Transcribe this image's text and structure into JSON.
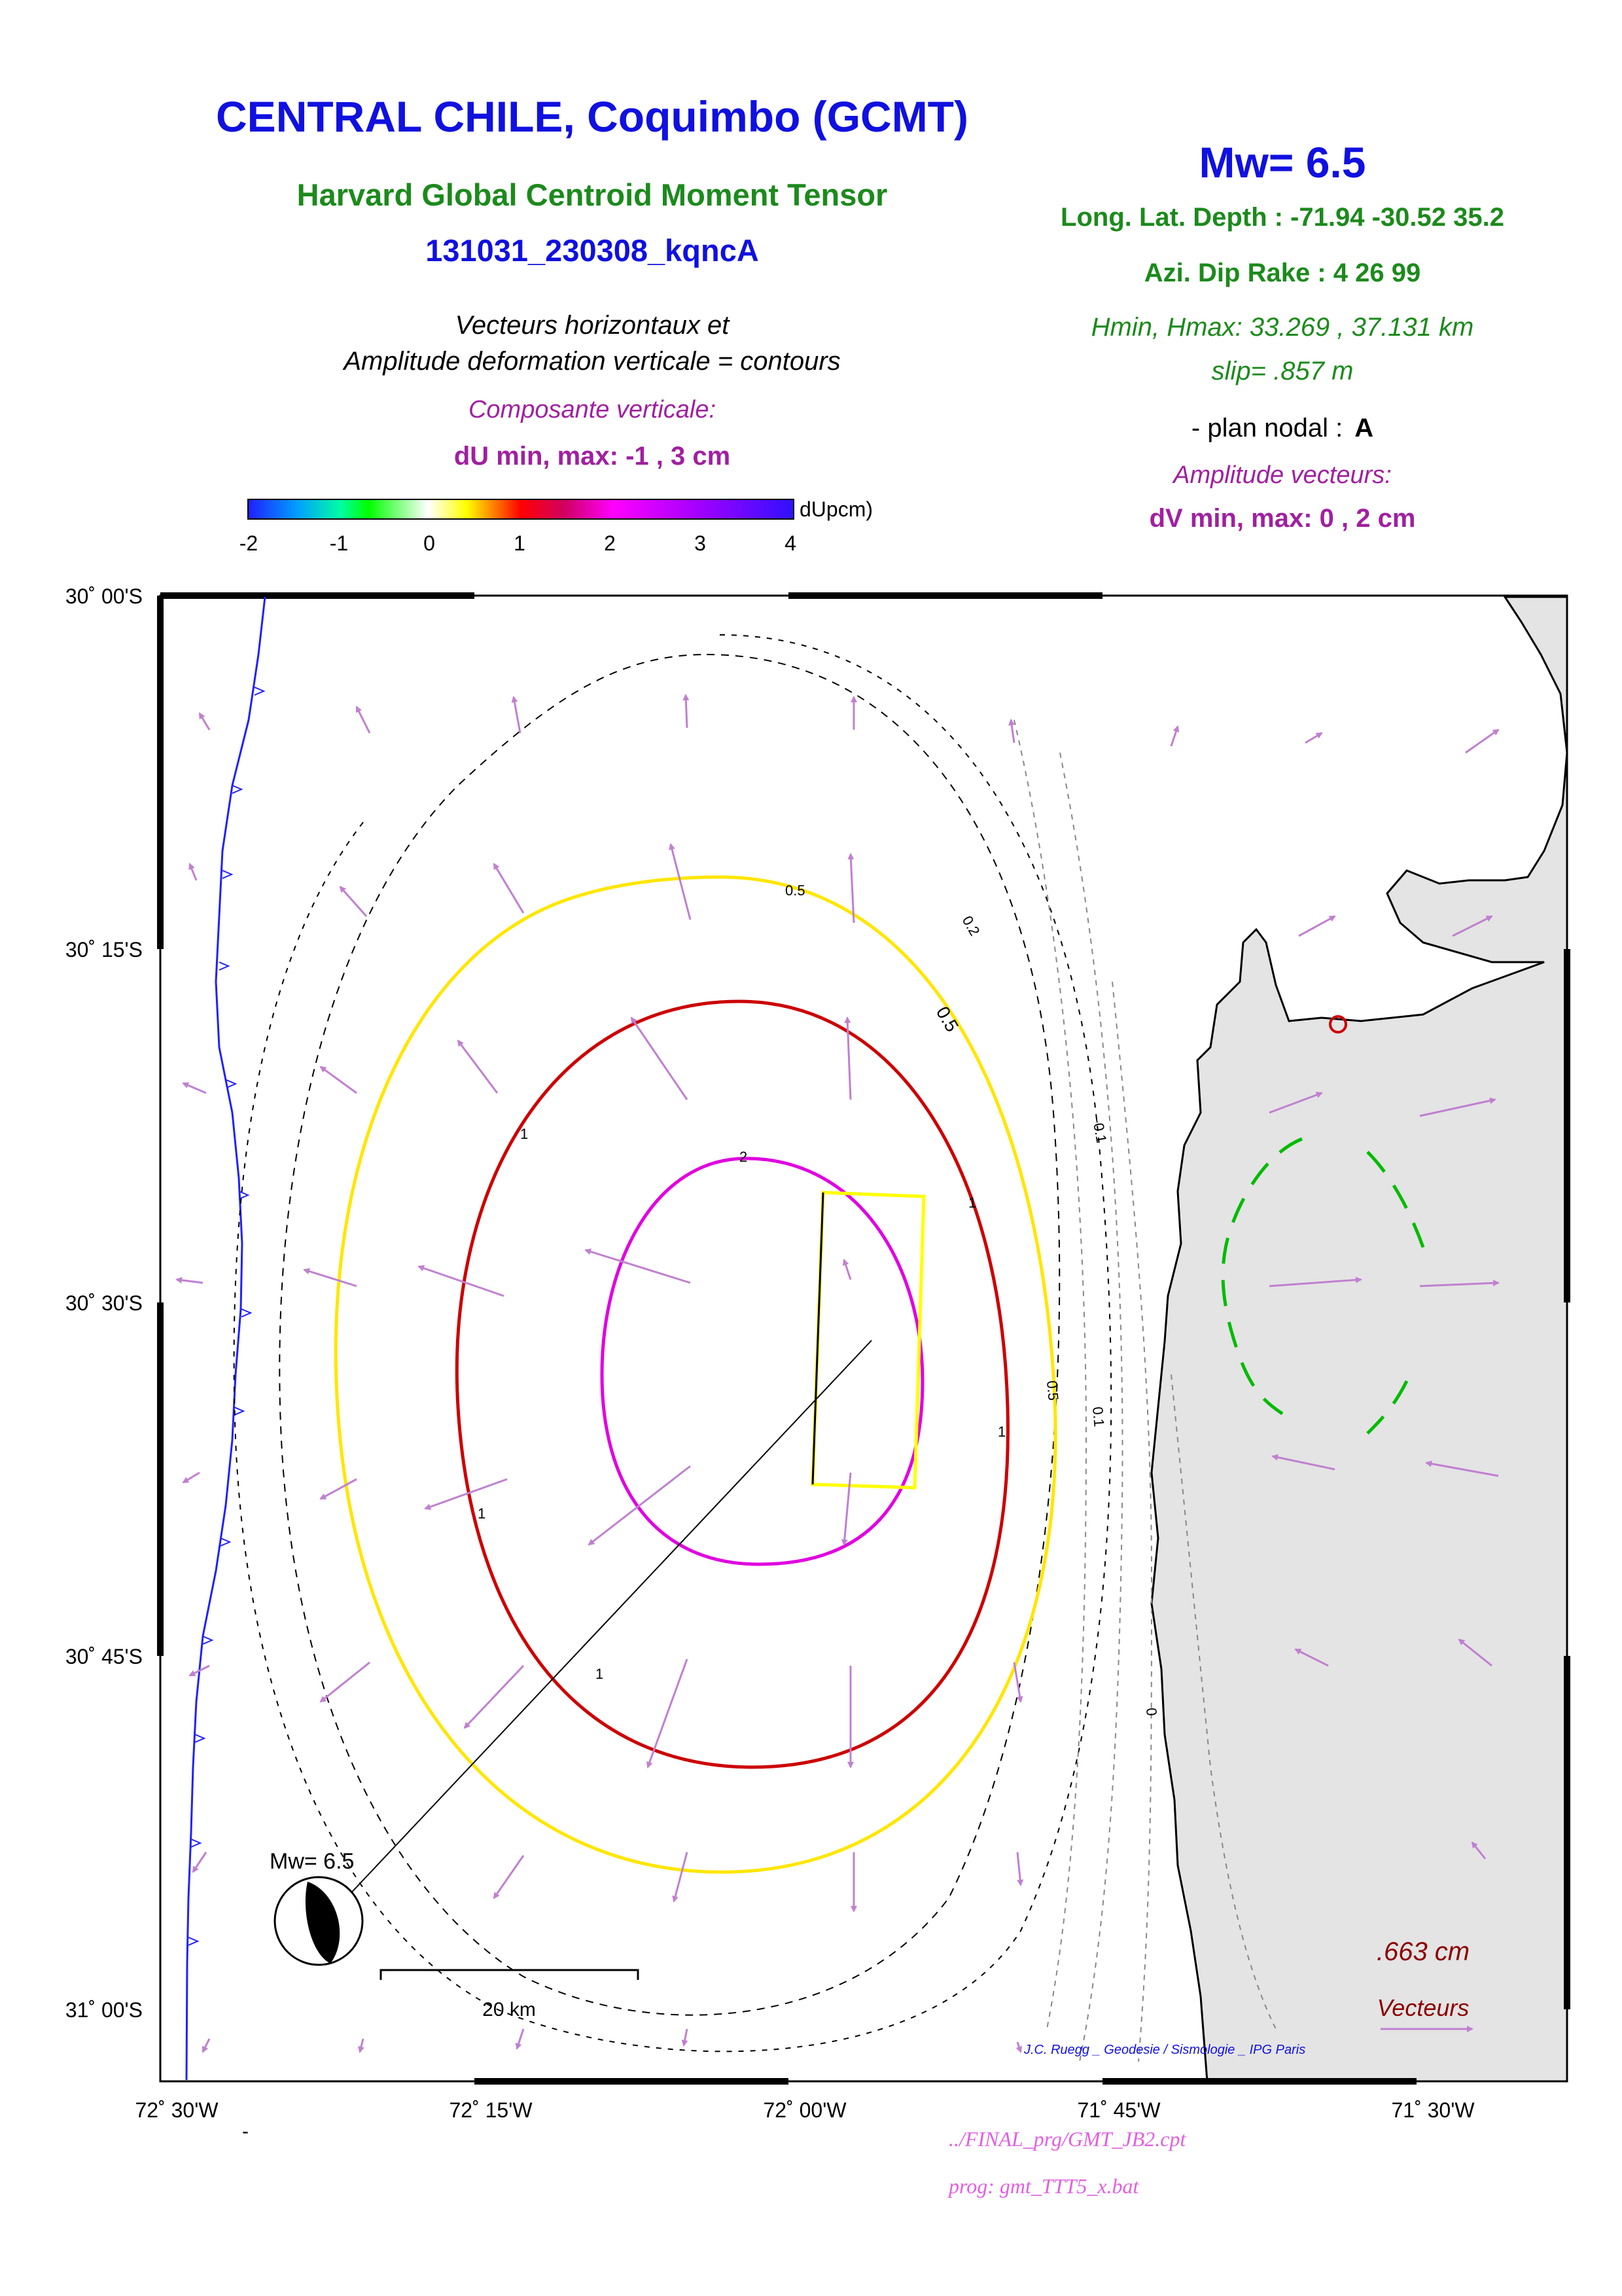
{
  "header": {
    "title": "CENTRAL CHILE, Coquimbo (GCMT)",
    "subtitle": "Harvard Global Centroid Moment Tensor",
    "event_id": "131031_230308_kqncA",
    "desc_line1": "Vecteurs horizontaux et",
    "desc_line2": "Amplitude deformation verticale = contours",
    "vertical_component": "Composante verticale:",
    "du_minmax": "dU min, max:  -1 , 3 cm"
  },
  "event": {
    "mw": "Mw= 6.5",
    "long_lat_depth": "Long. Lat. Depth : -71.94 -30.52 35.2",
    "azi_dip_rake": "Azi.  Dip   Rake :  4 26 99",
    "hmin_hmax": "Hmin, Hmax:  33.269 , 37.131 km",
    "slip": "slip= .857 m",
    "nodal_plane_label": "- plan nodal :",
    "nodal_plane_value": "A",
    "vector_amplitude": "Amplitude vecteurs:",
    "dv_minmax": "dV min, max:  0 , 2 cm"
  },
  "colorbar": {
    "ticks": [
      "-2",
      "-1",
      "0",
      "1",
      "2",
      "3",
      "4"
    ],
    "unit": "dUpcm)",
    "colors": {
      "negative": "#2020ff",
      "zero": "#ffffff",
      "positive": "#ff0000",
      "max": "#3010ff"
    }
  },
  "map": {
    "lat_labels": [
      "30˚ 00'S",
      "30˚ 15'S",
      "30˚ 30'S",
      "30˚ 45'S",
      "31˚ 00'S"
    ],
    "lon_labels": [
      "72˚ 30'W",
      "72˚ 15'W",
      "72˚ 00'W",
      "71˚ 45'W",
      "71˚ 30'W"
    ],
    "contour_labels": [
      "0.5",
      "0.2",
      "0.5",
      "-0.1",
      "1",
      "2",
      "1",
      "1",
      "0.5",
      "0.1",
      "1",
      "1",
      "0"
    ],
    "beachball_label": "Mw= 6.5",
    "scale_bar_label": "20 km",
    "vector_scale_value": ".663  cm",
    "vector_scale_label": "Vecteurs",
    "credit": "J.C. Ruegg _ Geodesie / Sismologie _ IPG Paris",
    "colors": {
      "contour_05": "#ffe600",
      "contour_1": "#cc0000",
      "contour_2": "#e000e0",
      "contour_neg": "#00bb00",
      "vectors": "#c080d0",
      "land": "#e4e4e4",
      "trench": "#2020ff",
      "fault_box": "#ffff00"
    }
  },
  "footer": {
    "dash": "-",
    "cpt_path": "../FINAL_prg/GMT_JB2.cpt",
    "program": "prog: gmt_TTT5_x.bat"
  }
}
